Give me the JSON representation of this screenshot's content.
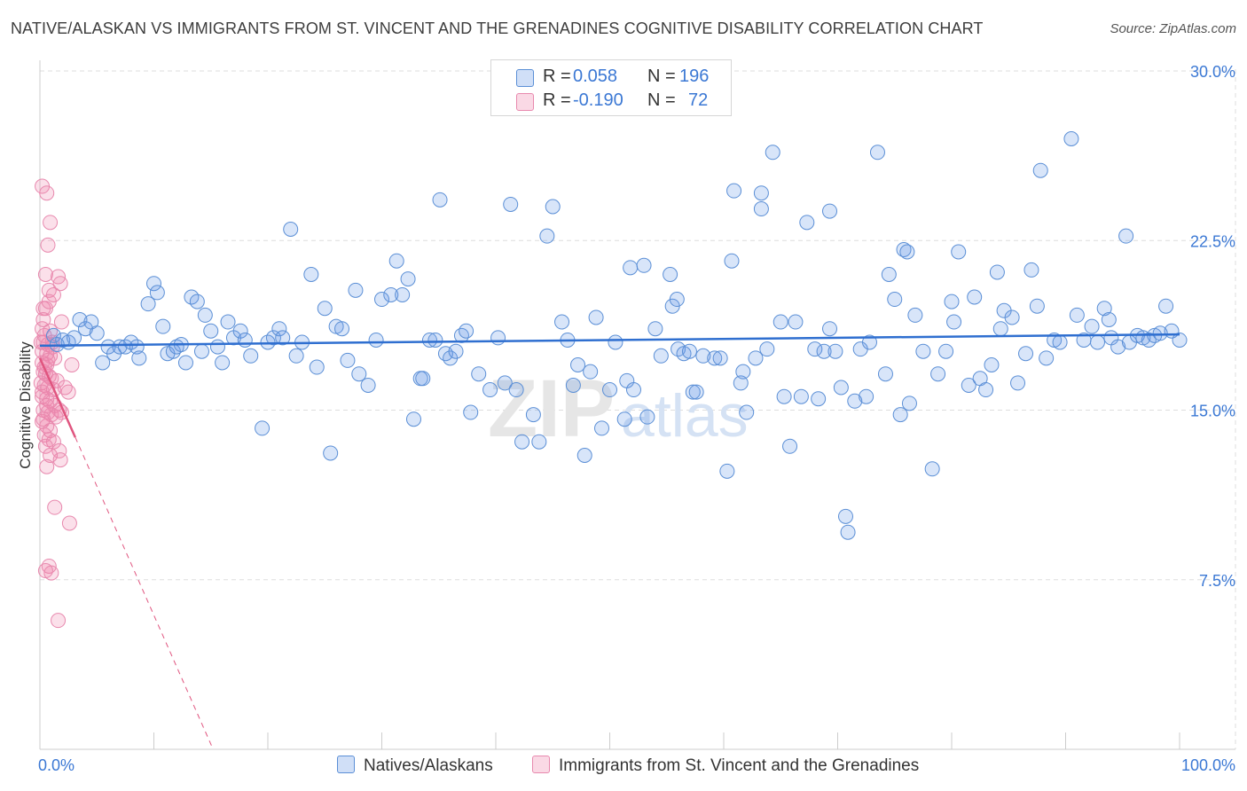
{
  "title": "NATIVE/ALASKAN VS IMMIGRANTS FROM ST. VINCENT AND THE GRENADINES COGNITIVE DISABILITY CORRELATION CHART",
  "source": "Source: ZipAtlas.com",
  "watermark": {
    "zip": "ZIP",
    "atlas": "atlas"
  },
  "legend_top": {
    "rows": [
      {
        "r_label": "R =",
        "r_value": "0.058",
        "n_label": "N =",
        "n_value": "196"
      },
      {
        "r_label": "R =",
        "r_value": "-0.190",
        "n_label": "N =",
        "n_value": "72"
      }
    ]
  },
  "legend_bottom": [
    "Natives/Alaskans",
    "Immigrants from St. Vincent and the Grenadines"
  ],
  "colors": {
    "blue_fill": "rgba(100,150,230,0.25)",
    "blue_stroke": "#5b8fd6",
    "blue_line": "#2f6fd0",
    "pink_fill": "rgba(240,130,170,0.25)",
    "pink_stroke": "#e889ae",
    "pink_line": "#e0557f",
    "axis_label": "#3b78d4",
    "grid": "#dddddd"
  },
  "chart_data": {
    "type": "scatter",
    "ylabel": "Cognitive Disability",
    "xlabel": "",
    "x_tick_labels": [
      "0.0%",
      "100.0%"
    ],
    "y_tick_labels": [
      "7.5%",
      "15.0%",
      "22.5%",
      "30.0%"
    ],
    "y_ticks": [
      7.5,
      15.0,
      22.5,
      30.0
    ],
    "xlim": [
      0,
      100
    ],
    "ylim": [
      0,
      30
    ],
    "grid": true,
    "series": [
      {
        "name": "Natives/Alaskans",
        "trend": {
          "x": [
            0,
            100
          ],
          "y": [
            17.85,
            18.35
          ],
          "style": "solid"
        },
        "points": [
          [
            1.2,
            18.3
          ],
          [
            1.5,
            17.9
          ],
          [
            2.0,
            18.1
          ],
          [
            2.5,
            18.0
          ],
          [
            3.0,
            18.2
          ],
          [
            3.5,
            19.0
          ],
          [
            4.0,
            18.6
          ],
          [
            4.5,
            18.9
          ],
          [
            5.0,
            18.4
          ],
          [
            5.5,
            17.1
          ],
          [
            6.0,
            17.8
          ],
          [
            6.5,
            17.5
          ],
          [
            7.0,
            17.8
          ],
          [
            7.5,
            17.8
          ],
          [
            8.0,
            18.0
          ],
          [
            8.5,
            17.8
          ],
          [
            8.7,
            17.3
          ],
          [
            9.5,
            19.7
          ],
          [
            10.0,
            20.6
          ],
          [
            10.3,
            20.2
          ],
          [
            10.8,
            18.7
          ],
          [
            11.2,
            17.5
          ],
          [
            11.7,
            17.6
          ],
          [
            12.0,
            17.8
          ],
          [
            12.4,
            17.9
          ],
          [
            12.8,
            17.1
          ],
          [
            13.3,
            20.0
          ],
          [
            13.8,
            19.8
          ],
          [
            14.2,
            17.6
          ],
          [
            14.5,
            19.2
          ],
          [
            15.0,
            18.5
          ],
          [
            15.6,
            17.8
          ],
          [
            16.0,
            17.1
          ],
          [
            16.5,
            18.9
          ],
          [
            17.0,
            18.2
          ],
          [
            17.6,
            18.5
          ],
          [
            18.0,
            18.1
          ],
          [
            18.5,
            17.4
          ],
          [
            19.5,
            14.2
          ],
          [
            20.0,
            18.0
          ],
          [
            20.5,
            18.2
          ],
          [
            21.0,
            18.6
          ],
          [
            21.3,
            18.2
          ],
          [
            22.0,
            23.0
          ],
          [
            22.5,
            17.4
          ],
          [
            23.0,
            18.0
          ],
          [
            23.8,
            21.0
          ],
          [
            24.3,
            16.9
          ],
          [
            25.0,
            19.5
          ],
          [
            25.5,
            13.1
          ],
          [
            26.0,
            18.7
          ],
          [
            26.5,
            18.6
          ],
          [
            27.0,
            17.2
          ],
          [
            27.7,
            20.3
          ],
          [
            28.0,
            16.6
          ],
          [
            28.8,
            16.1
          ],
          [
            29.5,
            18.1
          ],
          [
            30.0,
            19.9
          ],
          [
            30.8,
            20.1
          ],
          [
            31.3,
            21.6
          ],
          [
            31.8,
            20.1
          ],
          [
            32.3,
            20.8
          ],
          [
            32.8,
            14.6
          ],
          [
            33.4,
            16.4
          ],
          [
            33.6,
            16.4
          ],
          [
            34.2,
            18.1
          ],
          [
            34.7,
            18.1
          ],
          [
            35.1,
            24.3
          ],
          [
            35.6,
            17.5
          ],
          [
            36.0,
            17.3
          ],
          [
            36.5,
            17.6
          ],
          [
            37.0,
            18.3
          ],
          [
            37.4,
            18.5
          ],
          [
            37.8,
            14.9
          ],
          [
            38.5,
            16.6
          ],
          [
            39.5,
            15.9
          ],
          [
            40.2,
            18.2
          ],
          [
            40.8,
            16.2
          ],
          [
            41.3,
            24.1
          ],
          [
            41.8,
            15.9
          ],
          [
            42.3,
            13.6
          ],
          [
            43.3,
            14.8
          ],
          [
            43.8,
            13.6
          ],
          [
            44.5,
            22.7
          ],
          [
            45.0,
            24.0
          ],
          [
            45.8,
            18.9
          ],
          [
            46.3,
            18.1
          ],
          [
            46.8,
            16.1
          ],
          [
            47.2,
            17.0
          ],
          [
            47.8,
            13.0
          ],
          [
            48.3,
            16.7
          ],
          [
            48.8,
            19.1
          ],
          [
            49.3,
            14.2
          ],
          [
            50.0,
            15.9
          ],
          [
            50.5,
            18.0
          ],
          [
            51.3,
            14.6
          ],
          [
            51.5,
            16.3
          ],
          [
            51.8,
            21.3
          ],
          [
            52.1,
            15.9
          ],
          [
            53.0,
            21.4
          ],
          [
            53.3,
            14.7
          ],
          [
            54.0,
            18.6
          ],
          [
            54.5,
            17.4
          ],
          [
            55.3,
            21.0
          ],
          [
            55.5,
            19.6
          ],
          [
            56.0,
            17.7
          ],
          [
            56.5,
            17.5
          ],
          [
            57.0,
            17.6
          ],
          [
            57.3,
            15.8
          ],
          [
            57.6,
            15.8
          ],
          [
            58.2,
            17.4
          ],
          [
            59.2,
            17.3
          ],
          [
            59.7,
            17.3
          ],
          [
            60.3,
            12.3
          ],
          [
            60.7,
            21.6
          ],
          [
            61.5,
            16.2
          ],
          [
            61.7,
            16.7
          ],
          [
            62.0,
            14.9
          ],
          [
            62.8,
            17.3
          ],
          [
            63.3,
            24.6
          ],
          [
            63.8,
            17.7
          ],
          [
            63.3,
            23.9
          ],
          [
            64.3,
            26.4
          ],
          [
            65.0,
            18.9
          ],
          [
            65.3,
            15.6
          ],
          [
            65.8,
            13.4
          ],
          [
            66.3,
            18.9
          ],
          [
            66.8,
            15.6
          ],
          [
            67.3,
            23.3
          ],
          [
            68.0,
            17.7
          ],
          [
            68.3,
            15.5
          ],
          [
            68.8,
            17.6
          ],
          [
            69.3,
            18.6
          ],
          [
            69.8,
            17.6
          ],
          [
            70.3,
            16.0
          ],
          [
            70.7,
            10.3
          ],
          [
            70.9,
            9.6
          ],
          [
            71.5,
            15.4
          ],
          [
            72.0,
            17.7
          ],
          [
            72.5,
            15.6
          ],
          [
            72.8,
            18.0
          ],
          [
            73.5,
            26.4
          ],
          [
            74.2,
            16.6
          ],
          [
            74.5,
            21.0
          ],
          [
            75.0,
            19.9
          ],
          [
            75.5,
            14.8
          ],
          [
            75.8,
            22.1
          ],
          [
            76.3,
            15.3
          ],
          [
            76.8,
            19.2
          ],
          [
            77.5,
            17.6
          ],
          [
            78.3,
            12.4
          ],
          [
            78.8,
            16.6
          ],
          [
            79.5,
            17.6
          ],
          [
            80.0,
            19.8
          ],
          [
            80.2,
            18.9
          ],
          [
            80.6,
            22.0
          ],
          [
            81.5,
            16.1
          ],
          [
            82.0,
            20.0
          ],
          [
            82.5,
            16.4
          ],
          [
            83.0,
            15.9
          ],
          [
            83.5,
            17.0
          ],
          [
            84.0,
            21.1
          ],
          [
            84.3,
            18.6
          ],
          [
            84.6,
            19.4
          ],
          [
            85.3,
            19.1
          ],
          [
            85.8,
            16.2
          ],
          [
            86.5,
            17.5
          ],
          [
            87.0,
            21.2
          ],
          [
            87.5,
            19.6
          ],
          [
            88.3,
            17.3
          ],
          [
            89.0,
            18.1
          ],
          [
            89.5,
            18.0
          ],
          [
            90.5,
            27.0
          ],
          [
            91.0,
            19.2
          ],
          [
            91.6,
            18.1
          ],
          [
            92.3,
            18.7
          ],
          [
            92.8,
            18.0
          ],
          [
            93.4,
            19.5
          ],
          [
            94.0,
            18.2
          ],
          [
            94.6,
            17.8
          ],
          [
            95.3,
            22.7
          ],
          [
            95.6,
            18.0
          ],
          [
            96.3,
            18.3
          ],
          [
            96.8,
            18.2
          ],
          [
            97.3,
            18.1
          ],
          [
            97.8,
            18.3
          ],
          [
            98.3,
            18.4
          ],
          [
            98.8,
            19.6
          ],
          [
            99.3,
            18.5
          ],
          [
            100.0,
            18.1
          ],
          [
            87.8,
            25.6
          ],
          [
            93.8,
            19.0
          ],
          [
            76.1,
            22.0
          ],
          [
            55.9,
            19.9
          ],
          [
            69.3,
            23.8
          ],
          [
            60.9,
            24.7
          ]
        ]
      },
      {
        "name": "Immigrants from St. Vincent and the Grenadines",
        "trend": {
          "x": [
            0,
            3.1
          ],
          "y": [
            17.3,
            13.8
          ],
          "dashed_extension": {
            "x": [
              3.1,
              15.2
            ],
            "y": [
              13.8,
              0
            ]
          }
        },
        "points": [
          [
            0.2,
            24.9
          ],
          [
            0.6,
            24.6
          ],
          [
            0.9,
            23.3
          ],
          [
            0.7,
            22.3
          ],
          [
            0.5,
            21.0
          ],
          [
            1.6,
            20.9
          ],
          [
            1.8,
            20.6
          ],
          [
            0.8,
            20.3
          ],
          [
            1.2,
            20.1
          ],
          [
            0.3,
            19.5
          ],
          [
            0.5,
            19.5
          ],
          [
            1.9,
            18.9
          ],
          [
            0.2,
            18.6
          ],
          [
            0.9,
            18.5
          ],
          [
            0.1,
            18.0
          ],
          [
            0.3,
            18.0
          ],
          [
            0.7,
            17.9
          ],
          [
            1.1,
            17.8
          ],
          [
            0.2,
            17.6
          ],
          [
            0.6,
            17.5
          ],
          [
            0.9,
            17.4
          ],
          [
            1.3,
            17.3
          ],
          [
            0.2,
            17.1
          ],
          [
            0.6,
            17.0
          ],
          [
            2.8,
            17.0
          ],
          [
            0.3,
            16.7
          ],
          [
            0.5,
            16.6
          ],
          [
            0.8,
            16.5
          ],
          [
            1.0,
            16.4
          ],
          [
            0.1,
            16.2
          ],
          [
            0.4,
            16.1
          ],
          [
            0.7,
            16.0
          ],
          [
            1.2,
            15.9
          ],
          [
            2.5,
            15.8
          ],
          [
            0.2,
            15.6
          ],
          [
            0.6,
            15.5
          ],
          [
            0.9,
            15.4
          ],
          [
            1.3,
            15.2
          ],
          [
            1.7,
            15.0
          ],
          [
            0.3,
            15.0
          ],
          [
            0.7,
            14.9
          ],
          [
            1.0,
            14.8
          ],
          [
            1.4,
            14.7
          ],
          [
            0.2,
            14.5
          ],
          [
            0.6,
            14.3
          ],
          [
            0.9,
            14.1
          ],
          [
            0.4,
            13.9
          ],
          [
            0.8,
            13.7
          ],
          [
            1.2,
            13.6
          ],
          [
            0.5,
            13.4
          ],
          [
            1.7,
            13.2
          ],
          [
            1.8,
            12.8
          ],
          [
            0.6,
            12.5
          ],
          [
            1.3,
            10.7
          ],
          [
            2.6,
            10.0
          ],
          [
            0.8,
            8.1
          ],
          [
            1.0,
            7.8
          ],
          [
            0.5,
            7.9
          ],
          [
            1.6,
            5.7
          ],
          [
            0.3,
            19.0
          ],
          [
            0.8,
            19.8
          ],
          [
            0.4,
            16.9
          ],
          [
            1.5,
            16.3
          ],
          [
            0.2,
            15.8
          ],
          [
            0.6,
            15.2
          ],
          [
            1.9,
            14.9
          ],
          [
            0.9,
            13.0
          ],
          [
            2.2,
            16.0
          ],
          [
            0.4,
            18.3
          ],
          [
            1.1,
            18.0
          ],
          [
            0.7,
            17.2
          ],
          [
            0.3,
            14.6
          ]
        ]
      }
    ]
  }
}
